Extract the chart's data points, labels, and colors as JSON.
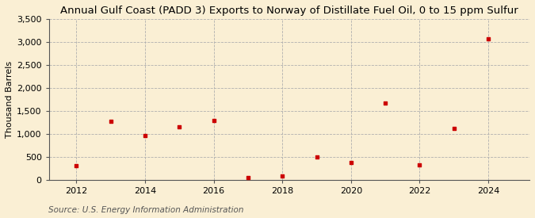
{
  "title": "Annual Gulf Coast (PADD 3) Exports to Norway of Distillate Fuel Oil, 0 to 15 ppm Sulfur",
  "ylabel": "Thousand Barrels",
  "source": "Source: U.S. Energy Information Administration",
  "background_color": "#faefd4",
  "years": [
    2012,
    2013,
    2014,
    2015,
    2016,
    2017,
    2018,
    2019,
    2020,
    2021,
    2022,
    2023,
    2024
  ],
  "values": [
    310,
    1270,
    960,
    1150,
    1290,
    50,
    90,
    500,
    380,
    1680,
    320,
    1120,
    3070
  ],
  "marker_color": "#cc0000",
  "ylim": [
    0,
    3500
  ],
  "yticks": [
    0,
    500,
    1000,
    1500,
    2000,
    2500,
    3000,
    3500
  ],
  "ytick_labels": [
    "0",
    "500",
    "1,000",
    "1,500",
    "2,000",
    "2,500",
    "3,000",
    "3,500"
  ],
  "xticks": [
    2012,
    2014,
    2016,
    2018,
    2020,
    2022,
    2024
  ],
  "xlim": [
    2011.2,
    2025.2
  ],
  "title_fontsize": 9.5,
  "label_fontsize": 8,
  "tick_fontsize": 8,
  "source_fontsize": 7.5
}
